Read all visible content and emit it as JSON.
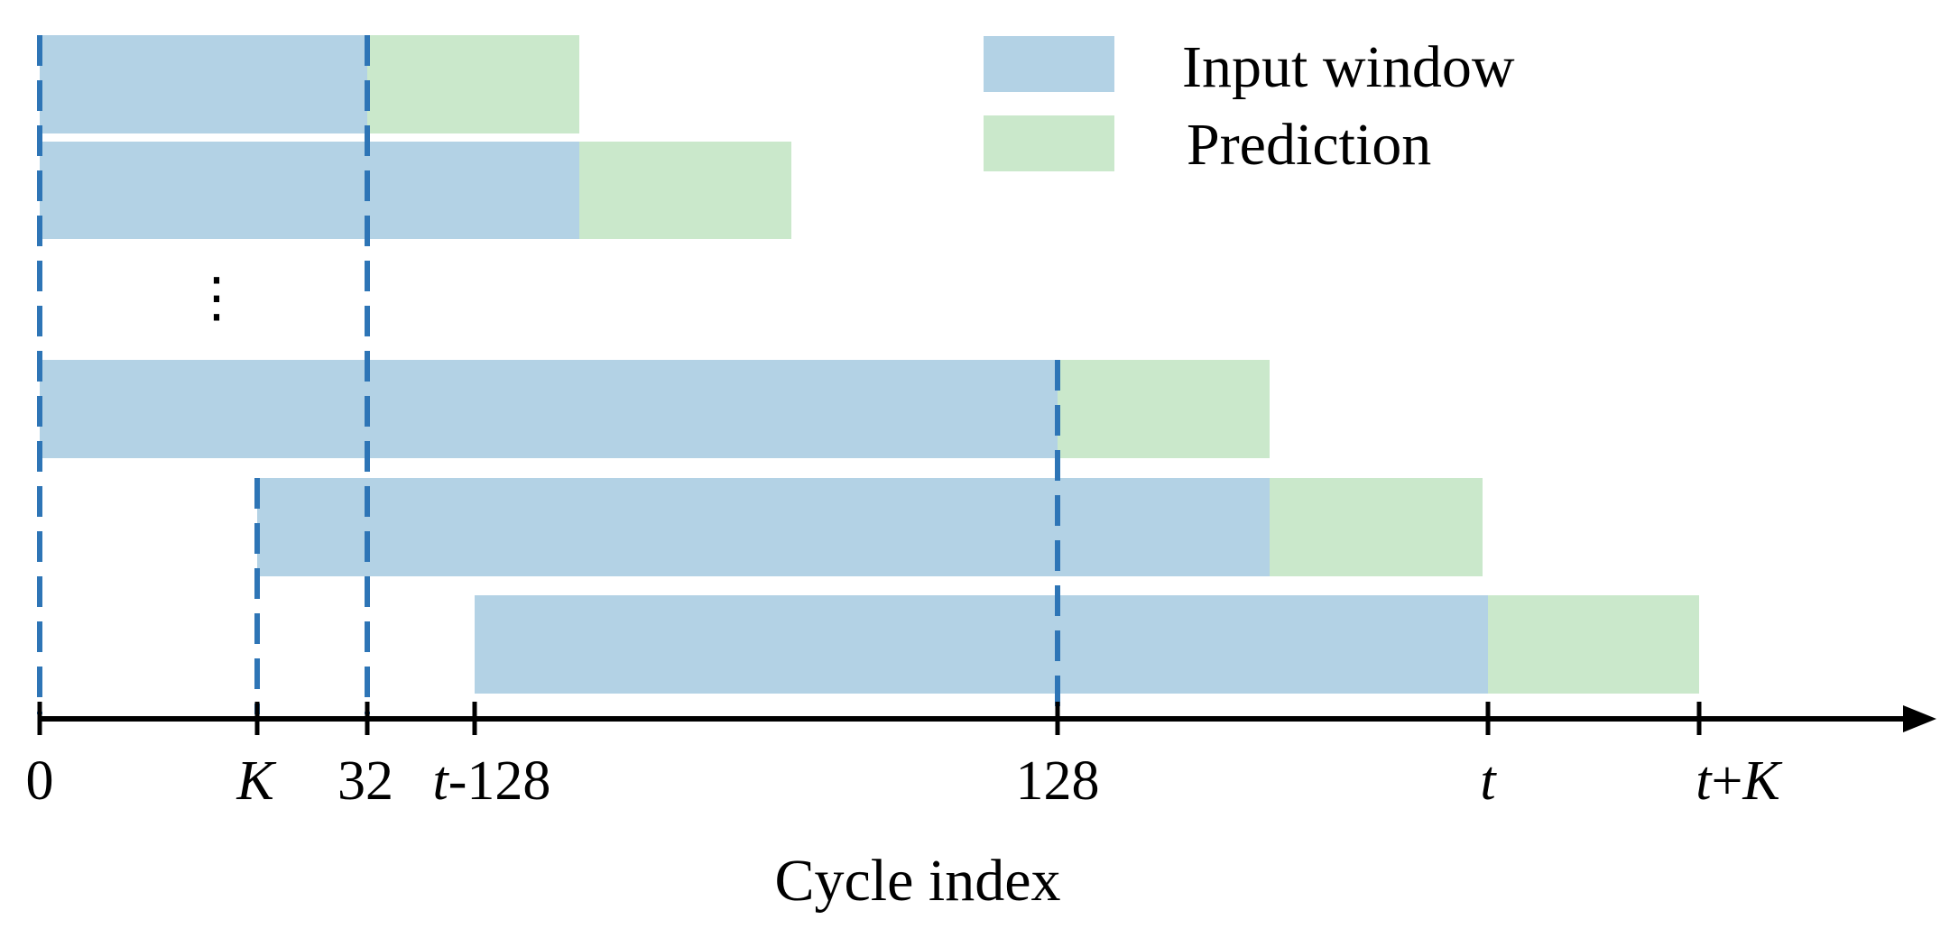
{
  "colors": {
    "input_window": "#b3d2e5",
    "prediction": "#cae8cb",
    "guide_line": "#2e75b6",
    "axis": "#000000"
  },
  "legend": {
    "input_window_label": "Input window",
    "prediction_label": "Prediction"
  },
  "axis": {
    "title": "Cycle index"
  },
  "ticks": [
    {
      "id": "0",
      "parts": [
        {
          "text": "0",
          "italic": false
        }
      ]
    },
    {
      "id": "K",
      "parts": [
        {
          "text": "K",
          "italic": true
        }
      ]
    },
    {
      "id": "32",
      "parts": [
        {
          "text": "32",
          "italic": false
        }
      ]
    },
    {
      "id": "t-128",
      "parts": [
        {
          "text": "t",
          "italic": true
        },
        {
          "text": "-128",
          "italic": false
        }
      ]
    },
    {
      "id": "128",
      "parts": [
        {
          "text": "128",
          "italic": false
        }
      ]
    },
    {
      "id": "t",
      "parts": [
        {
          "text": "t",
          "italic": true
        }
      ]
    },
    {
      "id": "t+K",
      "parts": [
        {
          "text": "t",
          "italic": true
        },
        {
          "text": "+",
          "italic": false
        },
        {
          "text": "K",
          "italic": true
        }
      ]
    }
  ],
  "windows": [
    {
      "row": 1,
      "input": [
        "0",
        "32"
      ],
      "prediction": [
        "32",
        "32+K"
      ]
    },
    {
      "row": 2,
      "input": [
        "0",
        "32+K"
      ],
      "prediction": [
        "32+K",
        "32+2K"
      ]
    },
    {
      "row": 3,
      "input": [
        "0",
        "128"
      ],
      "prediction": [
        "128",
        "128+K"
      ]
    },
    {
      "row": 4,
      "input": [
        "K",
        "128+K"
      ],
      "prediction": [
        "128+K",
        "128+2K"
      ]
    },
    {
      "row": 5,
      "input": [
        "t-128",
        "t"
      ],
      "prediction": [
        "t",
        "t+K"
      ]
    }
  ],
  "ellipsis": "⋮"
}
